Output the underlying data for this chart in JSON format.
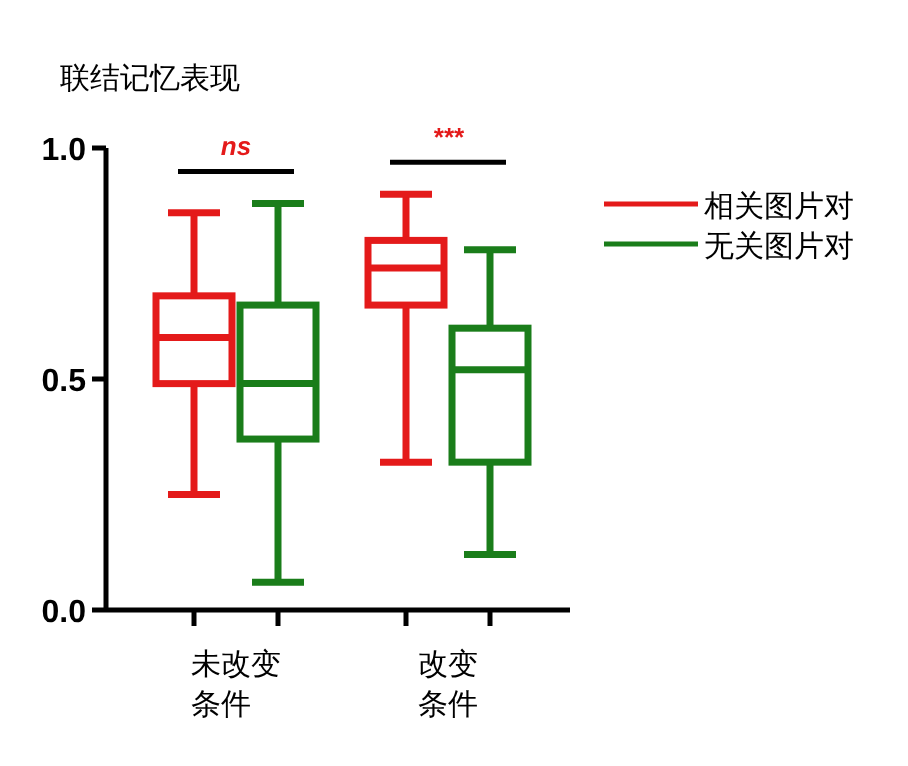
{
  "chart_data": {
    "type": "box",
    "title": "联结记忆表现",
    "categories": [
      "未改变条件",
      "改变条件"
    ],
    "series": [
      {
        "name": "相关图片对",
        "color": "#e41a1a",
        "boxes": [
          {
            "low": 0.25,
            "q1": 0.49,
            "median": 0.59,
            "q3": 0.68,
            "high": 0.86
          },
          {
            "low": 0.32,
            "q1": 0.66,
            "median": 0.74,
            "q3": 0.8,
            "high": 0.9
          }
        ]
      },
      {
        "name": "无关图片对",
        "color": "#1a7d1a",
        "boxes": [
          {
            "low": 0.06,
            "q1": 0.37,
            "median": 0.49,
            "q3": 0.66,
            "high": 0.88
          },
          {
            "low": 0.12,
            "q1": 0.32,
            "median": 0.52,
            "q3": 0.61,
            "high": 0.78
          }
        ]
      }
    ],
    "ylim": [
      0,
      1
    ],
    "yticks": [
      {
        "value": 0,
        "label": "0.0"
      },
      {
        "value": 0.5,
        "label": "0.5"
      },
      {
        "value": 1,
        "label": "1.0"
      }
    ],
    "annotations": [
      "ns",
      "***"
    ],
    "grid": false,
    "legend": "right"
  }
}
